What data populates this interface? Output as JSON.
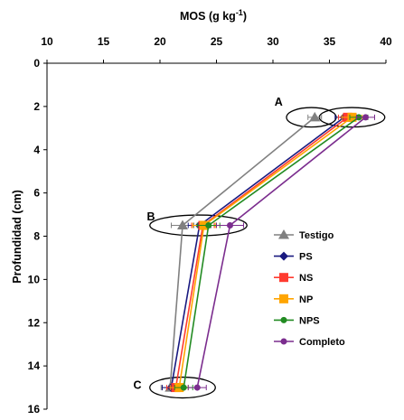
{
  "chart_data": {
    "type": "line",
    "title": "",
    "xlabel": "MOS (g kg",
    "xlabel_sup": "-1",
    "xlabel_close": ")",
    "ylabel": "Profundidad (cm)",
    "xlim": [
      10,
      40
    ],
    "ylim": [
      0,
      16
    ],
    "x_axis_position": "top",
    "y_axis_inverted": true,
    "xticks": [
      10,
      15,
      20,
      25,
      30,
      35,
      40
    ],
    "yticks": [
      0,
      2,
      4,
      6,
      8,
      10,
      12,
      14,
      16
    ],
    "grid": false,
    "legend_position": "right",
    "series": [
      {
        "name": "Testigo",
        "color": "#808080",
        "marker": "triangle",
        "x": [
          33.7,
          22.0,
          20.9
        ],
        "y": [
          2.5,
          7.5,
          15.0
        ],
        "xerr": [
          0.6,
          1.0,
          0.8
        ]
      },
      {
        "name": "PS",
        "color": "#1a1a80",
        "marker": "diamond",
        "x": [
          36.3,
          23.5,
          21.0
        ],
        "y": [
          2.5,
          7.5,
          15.0
        ],
        "xerr": [
          0.8,
          1.0,
          0.8
        ]
      },
      {
        "name": "NS",
        "color": "#ff3b30",
        "marker": "square",
        "x": [
          36.6,
          23.8,
          21.4
        ],
        "y": [
          2.5,
          7.5,
          15.0
        ],
        "xerr": [
          0.8,
          1.0,
          0.8
        ]
      },
      {
        "name": "NP",
        "color": "#ffa500",
        "marker": "square",
        "x": [
          37.0,
          23.9,
          21.7
        ],
        "y": [
          2.5,
          7.5,
          15.0
        ],
        "xerr": [
          0.9,
          1.0,
          0.8
        ]
      },
      {
        "name": "NPS",
        "color": "#228b22",
        "marker": "circle",
        "x": [
          37.6,
          24.3,
          22.1
        ],
        "y": [
          2.5,
          7.5,
          15.0
        ],
        "xerr": [
          0.8,
          1.0,
          0.8
        ]
      },
      {
        "name": "Completo",
        "color": "#7b2d8e",
        "marker": "circle",
        "x": [
          38.2,
          26.2,
          23.3
        ],
        "y": [
          2.5,
          7.5,
          15.0
        ],
        "xerr": [
          0.8,
          1.2,
          0.8
        ]
      }
    ],
    "annotations": [
      {
        "text": "A",
        "x": 30.5,
        "y": 1.8
      },
      {
        "text": "B",
        "x": 19.2,
        "y": 7.1
      },
      {
        "text": "C",
        "x": 18.0,
        "y": 14.9
      }
    ],
    "ellipses": [
      {
        "cx": 33.4,
        "cy": 2.5,
        "rx": 2.2,
        "ry": 0.45
      },
      {
        "cx": 37.0,
        "cy": 2.5,
        "rx": 2.9,
        "ry": 0.45
      },
      {
        "cx": 23.4,
        "cy": 7.5,
        "rx": 4.3,
        "ry": 0.48
      },
      {
        "cx": 22.0,
        "cy": 15.0,
        "rx": 2.9,
        "ry": 0.48
      }
    ]
  }
}
